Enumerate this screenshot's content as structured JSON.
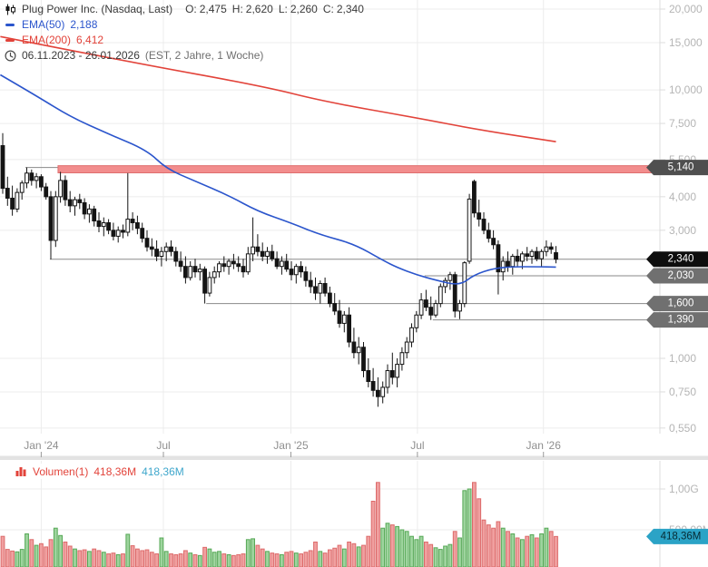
{
  "header": {
    "title": "Plug Power Inc. (Nasdaq, Last)",
    "ohlc": [
      {
        "label": "O:",
        "value": "2,475"
      },
      {
        "label": "H:",
        "value": "2,620"
      },
      {
        "label": "L:",
        "value": "2,260"
      },
      {
        "label": "C:",
        "value": "2,340"
      }
    ],
    "ema50_label": "EMA(50)",
    "ema50_value": "2,188",
    "ema200_label": "EMA(200)",
    "ema200_value": "6,412",
    "date_range": "06.11.2023 - 26.01.2026",
    "timeframe": "(EST, 2 Jahre, 1 Woche)"
  },
  "volume_legend": {
    "label": "Volumen(1)",
    "value_red": "418,36M",
    "value_cyan": "418,36M"
  },
  "colors": {
    "candle": "#141414",
    "up_fill": "#ffffff",
    "down_fill": "#141414",
    "ema50": "#2b55cc",
    "ema200": "#e2433a",
    "band_fill": "#f28d8d",
    "band_edge": "#df6e6e",
    "level_line": "#8a8a8a",
    "grid": "#ececec",
    "axis_line": "#dddddd",
    "axis_text": "#b5b5b5",
    "x_axis_text": "#8f8f8f",
    "tick": "#9a9a9a",
    "separator": "#e3e3e3",
    "vol_up_fill": "#9ed49e",
    "vol_up_stroke": "#55a855",
    "vol_down_fill": "#f0a0a0",
    "vol_down_stroke": "#dd6a6a",
    "badge_dark": "#4f4f4f",
    "badge_black": "#0e0e0e",
    "badge_gray": "#707070",
    "badge_vol": "#2ba3c6",
    "badge_text": "#ffffff",
    "badge_vol_text": "#062a33"
  },
  "chart_data": {
    "type": "candlestick",
    "title": "Plug Power Inc. (Nasdaq, Last)",
    "timeframe": "weekly",
    "x_range": "06.11.2023 - 26.01.2026",
    "y_scale": "log",
    "x_ticks": [
      {
        "w": 8.0,
        "label": "Jan '24"
      },
      {
        "w": 33.4,
        "label": "Jul"
      },
      {
        "w": 59.9,
        "label": "Jan '25"
      },
      {
        "w": 86.2,
        "label": "Jul"
      },
      {
        "w": 112.4,
        "label": "Jan '26"
      }
    ],
    "y_ticks": [
      {
        "v": 20,
        "label": "20,000"
      },
      {
        "v": 15,
        "label": "15,000"
      },
      {
        "v": 10,
        "label": "10,000"
      },
      {
        "v": 7.5,
        "label": "7,500"
      },
      {
        "v": 5.5,
        "label": "5,500"
      },
      {
        "v": 4,
        "label": "4,000"
      },
      {
        "v": 3,
        "label": "3,000"
      },
      {
        "v": 1,
        "label": "1,000"
      },
      {
        "v": 0.75,
        "label": "0,750"
      },
      {
        "v": 0.55,
        "label": "0,550"
      }
    ],
    "levels": [
      {
        "v": 5.14,
        "label": "5,140",
        "style": "zone",
        "zone_top": 5.22,
        "zone_bottom": 4.91,
        "line_from_w": 4.7,
        "zone_from_w": 11.5,
        "badge": "badge_dark"
      },
      {
        "v": 2.34,
        "label": "2,340",
        "style": "line",
        "from_w": 9.8,
        "badge": "badge_black"
      },
      {
        "v": 2.03,
        "label": "2,030",
        "style": "line",
        "from_w": 87.7,
        "badge": "badge_gray"
      },
      {
        "v": 1.6,
        "label": "1,600",
        "style": "line",
        "from_w": 42.3,
        "badge": "badge_gray"
      },
      {
        "v": 1.39,
        "label": "1,390",
        "style": "line",
        "from_w": 89.4,
        "badge": "badge_gray"
      }
    ],
    "ema50": {
      "name": "EMA(50)",
      "value": 2.188,
      "points": [
        [
          -0.5,
          11.38
        ],
        [
          7,
          9.51
        ],
        [
          14,
          7.95
        ],
        [
          22,
          6.85
        ],
        [
          30,
          5.96
        ],
        [
          34,
          5.09
        ],
        [
          40,
          4.57
        ],
        [
          47,
          4.04
        ],
        [
          53,
          3.53
        ],
        [
          60,
          3.19
        ],
        [
          66,
          2.885
        ],
        [
          73,
          2.67
        ],
        [
          79,
          2.32
        ],
        [
          82,
          2.18
        ],
        [
          86,
          2.05
        ],
        [
          90,
          1.955
        ],
        [
          95,
          1.865
        ],
        [
          98,
          2.05
        ],
        [
          102,
          2.163
        ],
        [
          106,
          2.195
        ],
        [
          111,
          2.195
        ],
        [
          115,
          2.188
        ]
      ]
    },
    "ema200": {
      "name": "EMA(200)",
      "value": 6.412,
      "points": [
        [
          -0.5,
          15.8
        ],
        [
          26,
          12.74
        ],
        [
          54,
          10.33
        ],
        [
          67,
          9.04
        ],
        [
          86,
          7.87
        ],
        [
          99,
          7.1
        ],
        [
          115,
          6.412
        ]
      ]
    },
    "candles": [
      [
        6.2,
        6.9,
        4.1,
        4.3
      ],
      [
        4.3,
        4.75,
        3.7,
        3.95
      ],
      [
        3.95,
        4.4,
        3.4,
        3.6
      ],
      [
        3.6,
        4.3,
        3.5,
        4.15
      ],
      [
        4.15,
        4.6,
        3.9,
        4.5
      ],
      [
        4.5,
        5.14,
        4.3,
        4.9
      ],
      [
        4.9,
        5.05,
        4.4,
        4.6
      ],
      [
        4.6,
        4.9,
        4.3,
        4.75
      ],
      [
        4.75,
        4.85,
        4.2,
        4.35
      ],
      [
        4.35,
        4.5,
        3.9,
        4.0
      ],
      [
        4.0,
        4.2,
        2.34,
        2.75
      ],
      [
        2.75,
        4.2,
        2.6,
        4.0
      ],
      [
        4.0,
        4.95,
        3.8,
        4.6
      ],
      [
        4.6,
        4.8,
        3.7,
        3.9
      ],
      [
        3.9,
        4.2,
        3.5,
        3.7
      ],
      [
        3.7,
        4.0,
        3.4,
        3.9
      ],
      [
        3.9,
        4.1,
        3.6,
        3.8
      ],
      [
        3.8,
        3.95,
        3.3,
        3.45
      ],
      [
        3.45,
        3.75,
        3.2,
        3.6
      ],
      [
        3.6,
        3.7,
        3.1,
        3.25
      ],
      [
        3.25,
        3.5,
        2.95,
        3.1
      ],
      [
        3.1,
        3.35,
        2.85,
        3.2
      ],
      [
        3.2,
        3.3,
        2.9,
        3.0
      ],
      [
        3.0,
        3.2,
        2.75,
        2.85
      ],
      [
        2.85,
        3.1,
        2.7,
        3.0
      ],
      [
        3.0,
        3.15,
        2.8,
        2.95
      ],
      [
        2.95,
        4.9,
        2.85,
        3.3
      ],
      [
        3.3,
        3.5,
        3.0,
        3.2
      ],
      [
        3.2,
        3.4,
        2.9,
        3.05
      ],
      [
        3.05,
        3.2,
        2.7,
        2.8
      ],
      [
        2.8,
        3.0,
        2.5,
        2.6
      ],
      [
        2.6,
        2.8,
        2.4,
        2.55
      ],
      [
        2.55,
        2.75,
        2.3,
        2.4
      ],
      [
        2.4,
        2.6,
        2.2,
        2.5
      ],
      [
        2.5,
        2.7,
        2.3,
        2.6
      ],
      [
        2.6,
        2.75,
        2.4,
        2.5
      ],
      [
        2.5,
        2.6,
        2.2,
        2.3
      ],
      [
        2.3,
        2.5,
        2.1,
        2.2
      ],
      [
        2.2,
        2.4,
        1.9,
        2.0
      ],
      [
        2.0,
        2.3,
        1.95,
        2.2
      ],
      [
        2.2,
        2.35,
        2.0,
        2.1
      ],
      [
        2.1,
        2.25,
        1.95,
        2.15
      ],
      [
        2.15,
        2.2,
        1.6,
        1.75
      ],
      [
        1.75,
        2.1,
        1.7,
        2.0
      ],
      [
        2.0,
        2.2,
        1.9,
        2.1
      ],
      [
        2.1,
        2.3,
        2.0,
        2.25
      ],
      [
        2.25,
        2.4,
        2.1,
        2.2
      ],
      [
        2.2,
        2.35,
        2.05,
        2.3
      ],
      [
        2.3,
        2.45,
        2.15,
        2.25
      ],
      [
        2.25,
        2.4,
        2.1,
        2.2
      ],
      [
        2.2,
        2.35,
        2.0,
        2.1
      ],
      [
        2.1,
        2.6,
        2.05,
        2.45
      ],
      [
        2.45,
        3.35,
        2.3,
        2.6
      ],
      [
        2.6,
        2.9,
        2.4,
        2.5
      ],
      [
        2.5,
        2.7,
        2.3,
        2.4
      ],
      [
        2.4,
        2.6,
        2.25,
        2.5
      ],
      [
        2.5,
        2.65,
        2.3,
        2.35
      ],
      [
        2.35,
        2.5,
        2.15,
        2.2
      ],
      [
        2.2,
        2.4,
        2.05,
        2.3
      ],
      [
        2.3,
        2.45,
        2.1,
        2.15
      ],
      [
        2.15,
        2.3,
        1.95,
        2.05
      ],
      [
        2.05,
        2.25,
        1.9,
        2.2
      ],
      [
        2.2,
        2.3,
        2.0,
        2.1
      ],
      [
        2.1,
        2.2,
        1.85,
        1.95
      ],
      [
        1.95,
        2.1,
        1.75,
        1.85
      ],
      [
        1.85,
        2.0,
        1.65,
        1.75
      ],
      [
        1.75,
        1.95,
        1.6,
        1.9
      ],
      [
        1.9,
        2.0,
        1.7,
        1.75
      ],
      [
        1.75,
        1.85,
        1.55,
        1.6
      ],
      [
        1.6,
        1.75,
        1.45,
        1.5
      ],
      [
        1.5,
        1.65,
        1.3,
        1.35
      ],
      [
        1.35,
        1.5,
        1.25,
        1.45
      ],
      [
        1.45,
        1.55,
        1.1,
        1.15
      ],
      [
        1.15,
        1.3,
        1.0,
        1.05
      ],
      [
        1.05,
        1.2,
        0.95,
        1.1
      ],
      [
        1.1,
        1.15,
        0.85,
        0.9
      ],
      [
        0.9,
        1.0,
        0.78,
        0.82
      ],
      [
        0.82,
        0.92,
        0.72,
        0.76
      ],
      [
        0.76,
        0.85,
        0.66,
        0.72
      ],
      [
        0.72,
        0.82,
        0.68,
        0.78
      ],
      [
        0.78,
        0.95,
        0.74,
        0.9
      ],
      [
        0.9,
        1.05,
        0.8,
        0.85
      ],
      [
        0.85,
        1.0,
        0.78,
        0.95
      ],
      [
        0.95,
        1.1,
        0.9,
        1.05
      ],
      [
        1.05,
        1.2,
        1.0,
        1.15
      ],
      [
        1.15,
        1.35,
        1.1,
        1.3
      ],
      [
        1.3,
        1.5,
        1.25,
        1.45
      ],
      [
        1.45,
        1.75,
        1.4,
        1.65
      ],
      [
        1.65,
        1.8,
        1.5,
        1.55
      ],
      [
        1.55,
        1.7,
        1.39,
        1.45
      ],
      [
        1.45,
        1.65,
        1.42,
        1.6
      ],
      [
        1.6,
        1.9,
        1.55,
        1.85
      ],
      [
        1.85,
        2.0,
        1.75,
        1.95
      ],
      [
        1.95,
        2.1,
        1.8,
        2.05
      ],
      [
        2.05,
        2.1,
        1.42,
        1.5
      ],
      [
        1.5,
        1.65,
        1.4,
        1.6
      ],
      [
        1.6,
        2.3,
        1.55,
        2.27
      ],
      [
        2.3,
        4.1,
        2.25,
        3.92
      ],
      [
        4.56,
        4.63,
        3.35,
        3.48
      ],
      [
        3.48,
        3.9,
        3.1,
        3.3
      ],
      [
        3.3,
        3.5,
        2.9,
        3.0
      ],
      [
        3.0,
        3.2,
        2.7,
        2.8
      ],
      [
        2.8,
        3.0,
        2.55,
        2.65
      ],
      [
        2.65,
        2.75,
        1.73,
        2.1
      ],
      [
        2.1,
        2.4,
        1.95,
        2.3
      ],
      [
        2.3,
        2.5,
        2.1,
        2.2
      ],
      [
        2.2,
        2.45,
        2.05,
        2.4
      ],
      [
        2.4,
        2.55,
        2.2,
        2.3
      ],
      [
        2.3,
        2.5,
        2.15,
        2.45
      ],
      [
        2.45,
        2.6,
        2.3,
        2.4
      ],
      [
        2.4,
        2.55,
        2.25,
        2.5
      ],
      [
        2.5,
        2.6,
        2.3,
        2.35
      ],
      [
        2.35,
        2.55,
        2.2,
        2.5
      ],
      [
        2.5,
        2.75,
        2.4,
        2.6
      ],
      [
        2.6,
        2.7,
        2.45,
        2.55
      ],
      [
        2.475,
        2.62,
        2.26,
        2.34
      ]
    ],
    "volume": {
      "unit": "M",
      "y_ticks": [
        {
          "v": 1000,
          "label": "1,00G"
        },
        {
          "v": 500,
          "label": "500,00M"
        }
      ],
      "last_label": "418,36M",
      "bars": [
        420,
        260,
        240,
        230,
        260,
        450,
        380,
        310,
        330,
        290,
        380,
        520,
        430,
        350,
        300,
        265,
        245,
        255,
        235,
        265,
        245,
        225,
        205,
        215,
        195,
        205,
        445,
        305,
        265,
        245,
        255,
        225,
        205,
        400,
        235,
        205,
        195,
        205,
        245,
        215,
        195,
        185,
        285,
        265,
        225,
        235,
        205,
        195,
        185,
        195,
        205,
        380,
        390,
        310,
        265,
        235,
        215,
        205,
        195,
        225,
        235,
        215,
        205,
        225,
        245,
        350,
        235,
        215,
        255,
        275,
        310,
        265,
        350,
        330,
        290,
        310,
        420,
        850,
        1080,
        520,
        580,
        560,
        540,
        500,
        480,
        420,
        380,
        420,
        350,
        320,
        280,
        260,
        300,
        320,
        480,
        400,
        980,
        1000,
        1080,
        880,
        620,
        560,
        520,
        600,
        520,
        480,
        450,
        400,
        380,
        420,
        440,
        400,
        450,
        520,
        480,
        418.36
      ]
    }
  }
}
